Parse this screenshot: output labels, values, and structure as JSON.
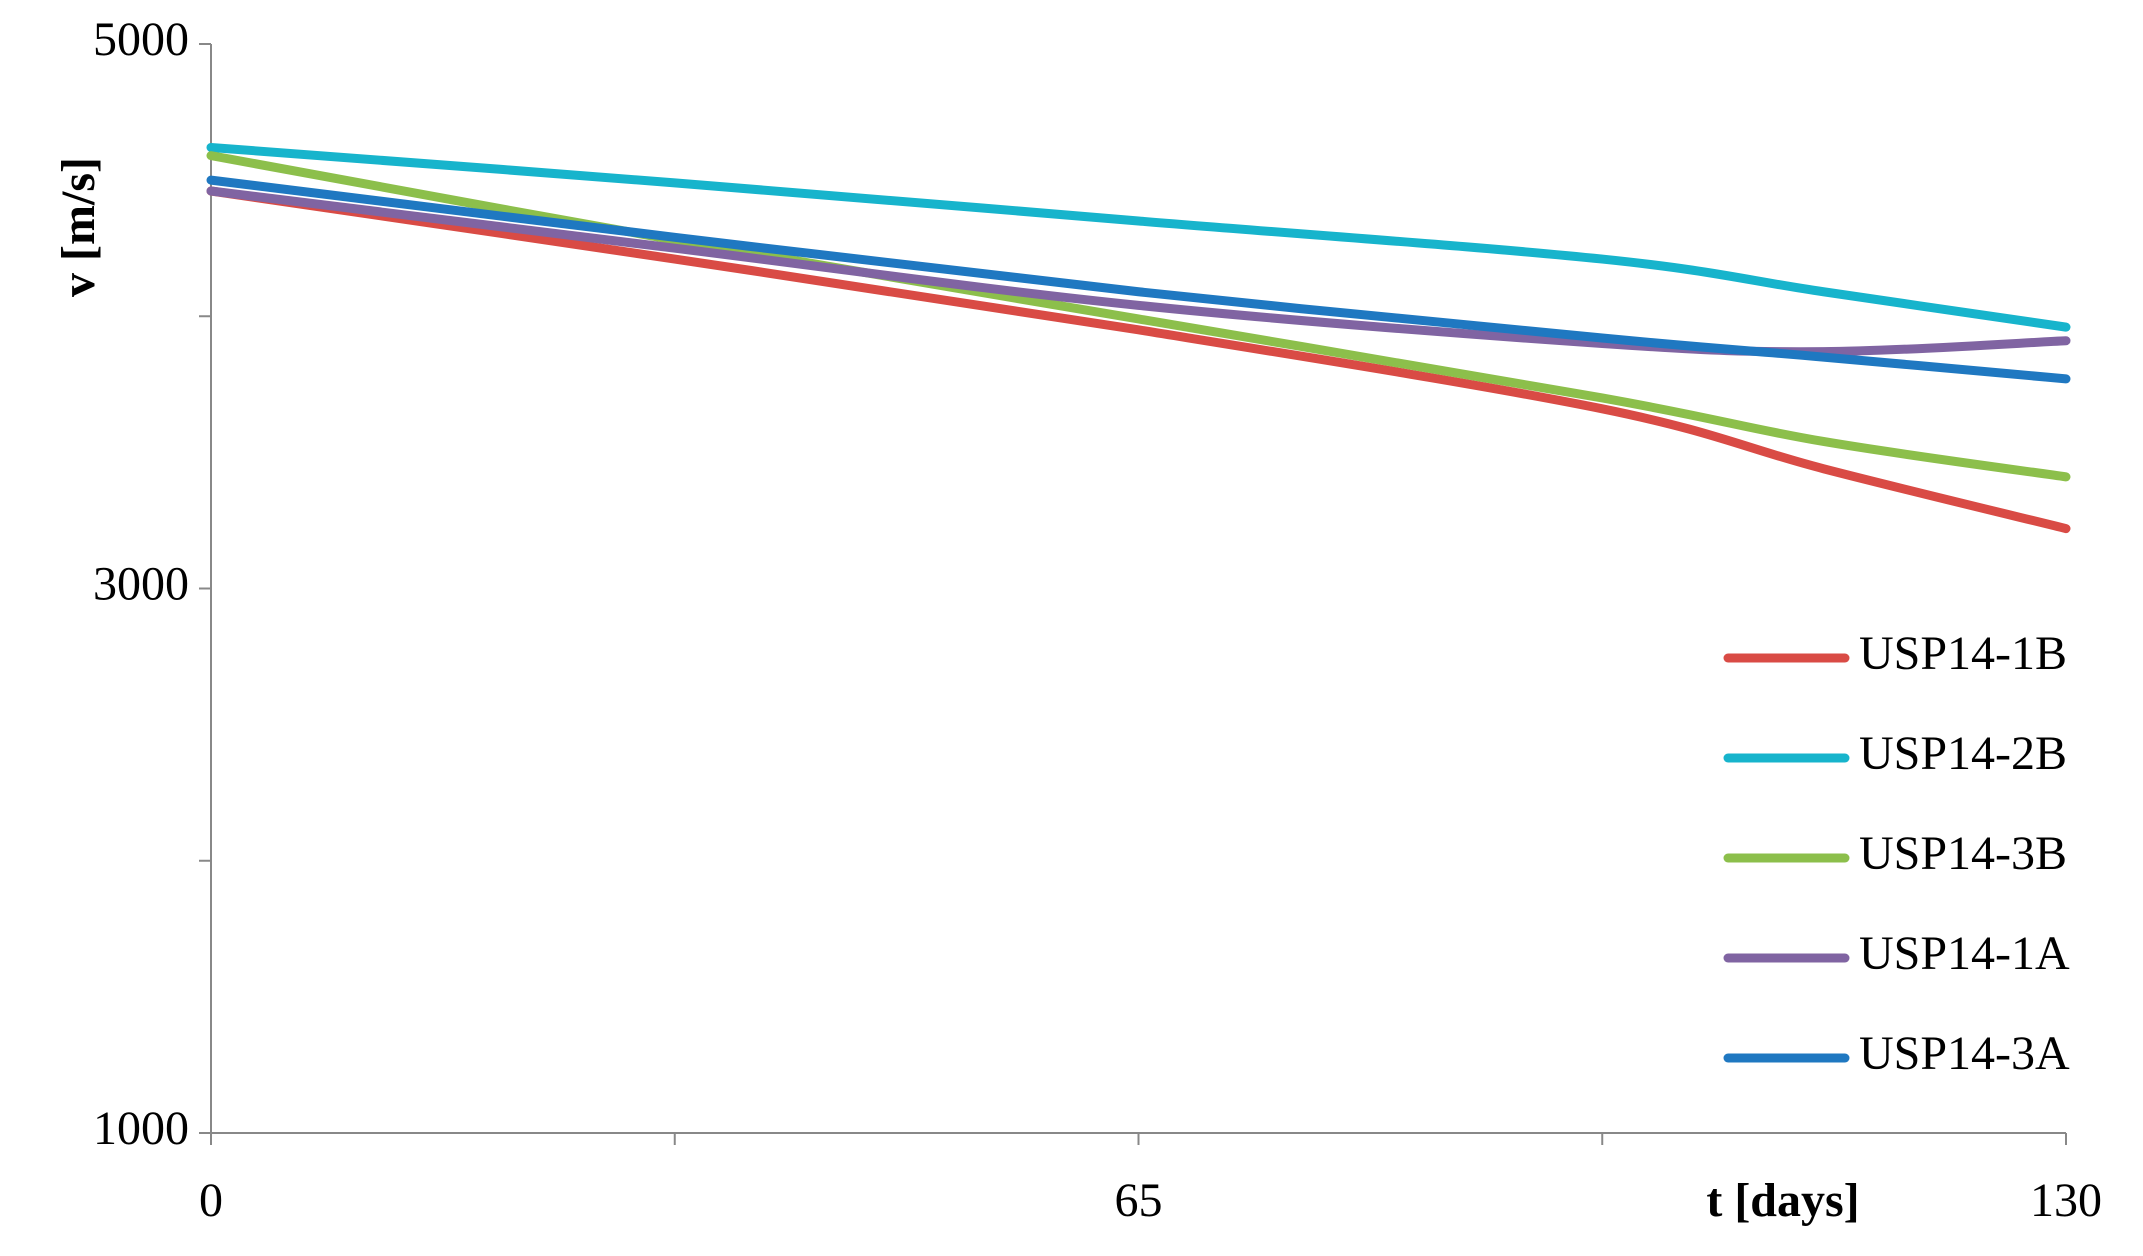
{
  "chart_data": {
    "type": "line",
    "x_label": "t [days]",
    "y_label": "v [m/s]",
    "x": [
      0,
      32.5,
      65,
      97.5,
      113,
      130
    ],
    "series": [
      {
        "name": "USP14-1B",
        "color": "#d94b45",
        "values": [
          4460,
          4210,
          3950,
          3660,
          3440,
          3220
        ]
      },
      {
        "name": "USP14-2B",
        "color": "#17b4cc",
        "values": [
          4620,
          4490,
          4350,
          4210,
          4090,
          3960
        ]
      },
      {
        "name": "USP14-3B",
        "color": "#8cbf4b",
        "values": [
          4590,
          4280,
          3990,
          3700,
          3540,
          3410
        ]
      },
      {
        "name": "USP14-1A",
        "color": "#8064a2",
        "values": [
          4460,
          4250,
          4040,
          3900,
          3870,
          3910
        ]
      },
      {
        "name": "USP14-3A",
        "color": "#1f78c1",
        "values": [
          4500,
          4290,
          4090,
          3920,
          3850,
          3770
        ]
      }
    ],
    "xlim": [
      0,
      130
    ],
    "xticks": [
      0,
      65,
      130
    ],
    "xticks_minor": [
      32.5,
      97.5
    ],
    "ylim": [
      1000,
      5000
    ],
    "yticks": [
      1000,
      3000,
      5000
    ],
    "yticks_minor": [
      2000,
      4000
    ],
    "grid": false,
    "legend": "lower right"
  }
}
